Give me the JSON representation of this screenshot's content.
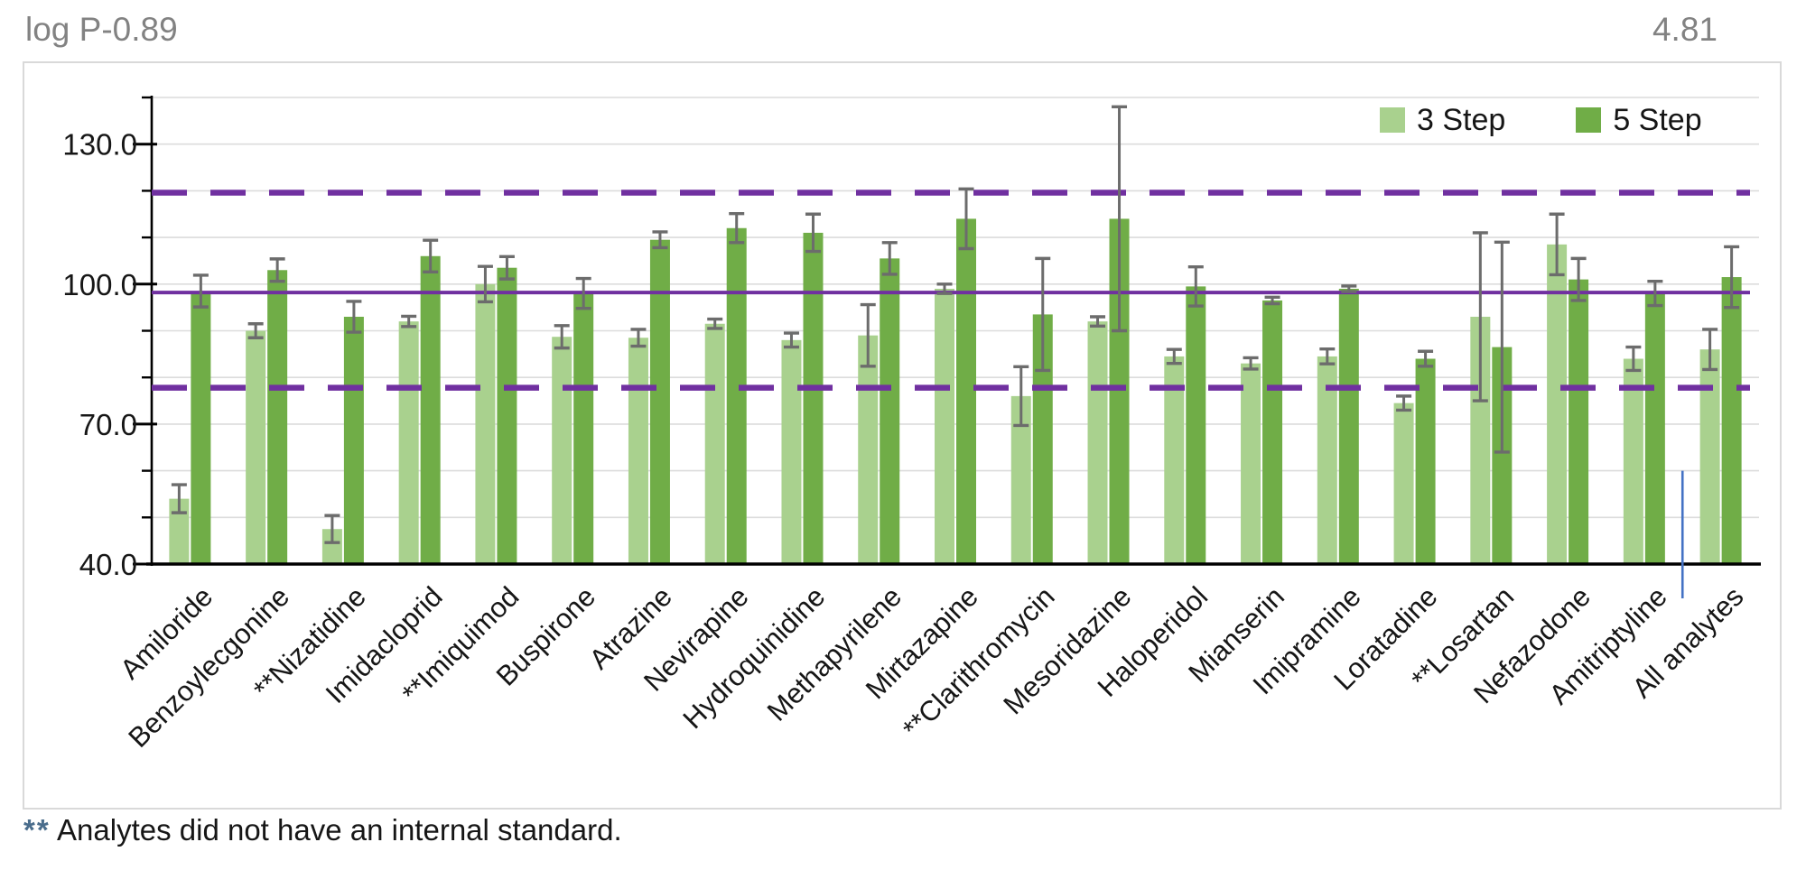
{
  "header": {
    "left_annotation": "log P-0.89",
    "right_annotation": "4.81"
  },
  "footnote": {
    "marker": "**",
    "text": " Analytes did not have an internal standard.",
    "marker_color": "#4a6d8c"
  },
  "chart_data": {
    "type": "bar",
    "title": "",
    "categories": [
      "Amiloride",
      "Benzoylecgonine",
      "**Nizatidine",
      "Imidacloprid",
      "**Imiquimod",
      "Buspirone",
      "Atrazine",
      "Nevirapine",
      "Hydroquinidine",
      "Methapyrilene",
      "Mirtazapine",
      "**Clarithromycin",
      "Mesoridazine",
      "Haloperidol",
      "Mianserin",
      "Imipramine",
      "Loratadine",
      "**Losartan",
      "Nefazodone",
      "Amitriptyline",
      "All analytes"
    ],
    "series": [
      {
        "name": "3 Step",
        "color": "#a9d18e",
        "values": [
          54,
          90,
          47.5,
          92,
          100,
          88.7,
          88.5,
          91.5,
          88,
          89,
          99,
          76,
          92,
          84.5,
          83,
          84.5,
          74.5,
          93,
          108.5,
          84,
          86
        ],
        "errors": [
          3,
          1.5,
          2.9,
          1.1,
          3.8,
          2.4,
          1.8,
          1,
          1.5,
          6.6,
          1,
          6.3,
          1,
          1.5,
          1.2,
          1.6,
          1.5,
          18,
          6.5,
          2.5,
          4.3
        ]
      },
      {
        "name": "5 Step",
        "color": "#70ad47",
        "values": [
          98.5,
          103,
          93,
          106,
          103.5,
          98,
          109.5,
          112,
          111,
          105.5,
          114,
          93.5,
          114,
          99.5,
          96.5,
          99,
          84,
          86.5,
          101,
          98,
          101.5
        ],
        "errors": [
          3.4,
          2.4,
          3.3,
          3.4,
          2.4,
          3.2,
          1.7,
          3.1,
          4,
          3.4,
          6.4,
          12,
          24,
          4.2,
          0.7,
          0.6,
          1.6,
          22.5,
          4.5,
          2.6,
          6.5
        ]
      }
    ],
    "ylim": [
      40,
      140
    ],
    "ylabel": "",
    "xlabel": "",
    "y_axis": {
      "labeled_ticks": [
        130,
        100,
        70,
        40
      ],
      "tick_label_format": [
        "130.0",
        "100.0",
        "70.0",
        "40.0"
      ],
      "minor_tick_step": 10
    },
    "grid": true,
    "legend_position": "top-right",
    "reference_lines": [
      {
        "id": "mean-line",
        "style": "solid",
        "value": 98.2,
        "color": "#7030a0"
      },
      {
        "id": "upper-limit-line",
        "style": "dashed",
        "value": 119.6,
        "color": "#7030a0"
      },
      {
        "id": "lower-limit-line",
        "style": "dashed",
        "value": 77.8,
        "color": "#7030a0"
      }
    ],
    "annotation_line": {
      "between_categories": [
        "Amitriptyline",
        "All analytes"
      ],
      "top_value": 60,
      "color": "#4472c4"
    },
    "error_bar_color": "#6c6c6c"
  }
}
